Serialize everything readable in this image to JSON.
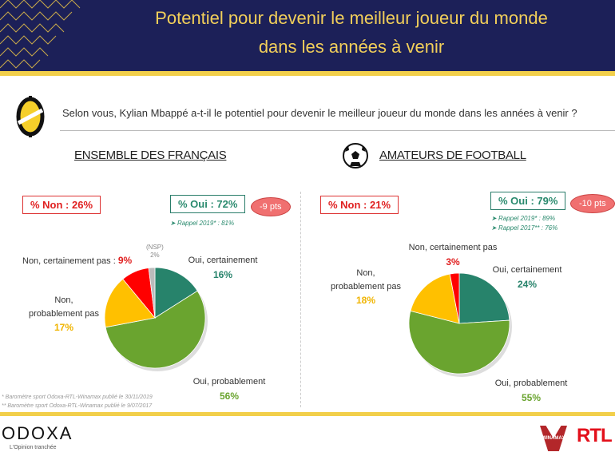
{
  "header": {
    "title_line1": "Potentiel pour devenir le meilleur joueur du monde",
    "title_line2": "dans les années à venir"
  },
  "question": "Selon vous, Kylian Mbappé a-t-il le potentiel pour devenir le meilleur joueur du monde dans les années à venir ?",
  "footnotes": [
    "* Baromètre sport Odoxa-RTL-Winamax publié le 30/11/2019",
    "** Baromètre sport Odoxa-RTL-Winamax publié le 9/07/2017"
  ],
  "footer": {
    "brand": "ODOXA",
    "tagline": "L'Opinion tranchée",
    "partner1": "WINAMAX",
    "partner2": "RTL"
  },
  "colors": {
    "oui_certainement": "#27836b",
    "oui_probablement": "#6aa42f",
    "non_probablement": "#ffc000",
    "non_certainement": "#ff0000",
    "nsp": "#bbbbbb"
  },
  "chart_data": [
    {
      "type": "pie",
      "title": "ENSEMBLE DES FRANÇAIS",
      "non_total": "% Non : 26%",
      "oui_total": "% Oui : 72%",
      "change": "-9 pts",
      "recalls": [
        "Rappel 2019* : 81%"
      ],
      "slices": [
        {
          "label": "Oui, certainement",
          "value": 16,
          "text": "16%",
          "key": "oui_certainement"
        },
        {
          "label": "Oui, probablement",
          "value": 56,
          "text": "56%",
          "key": "oui_probablement"
        },
        {
          "label": "Non, probablement pas",
          "value": 17,
          "text": "17%",
          "key": "non_probablement"
        },
        {
          "label": "Non, certainement pas :",
          "value": 9,
          "text": "9%",
          "key": "non_certainement"
        },
        {
          "label": "(NSP)",
          "value": 2,
          "text": "2%",
          "key": "nsp"
        }
      ]
    },
    {
      "type": "pie",
      "title": "AMATEURS DE FOOTBALL",
      "non_total": "% Non : 21%",
      "oui_total": "% Oui : 79%",
      "change": "-10 pts",
      "recalls": [
        "Rappel 2019* : 89%",
        "Rappel 2017** : 76%"
      ],
      "slices": [
        {
          "label": "Oui, certainement",
          "value": 24,
          "text": "24%",
          "key": "oui_certainement"
        },
        {
          "label": "Oui, probablement",
          "value": 55,
          "text": "55%",
          "key": "oui_probablement"
        },
        {
          "label": "Non, probablement pas",
          "value": 18,
          "text": "18%",
          "key": "non_probablement"
        },
        {
          "label": "Non, certainement pas",
          "value": 3,
          "text": "3%",
          "key": "non_certainement"
        }
      ]
    }
  ]
}
